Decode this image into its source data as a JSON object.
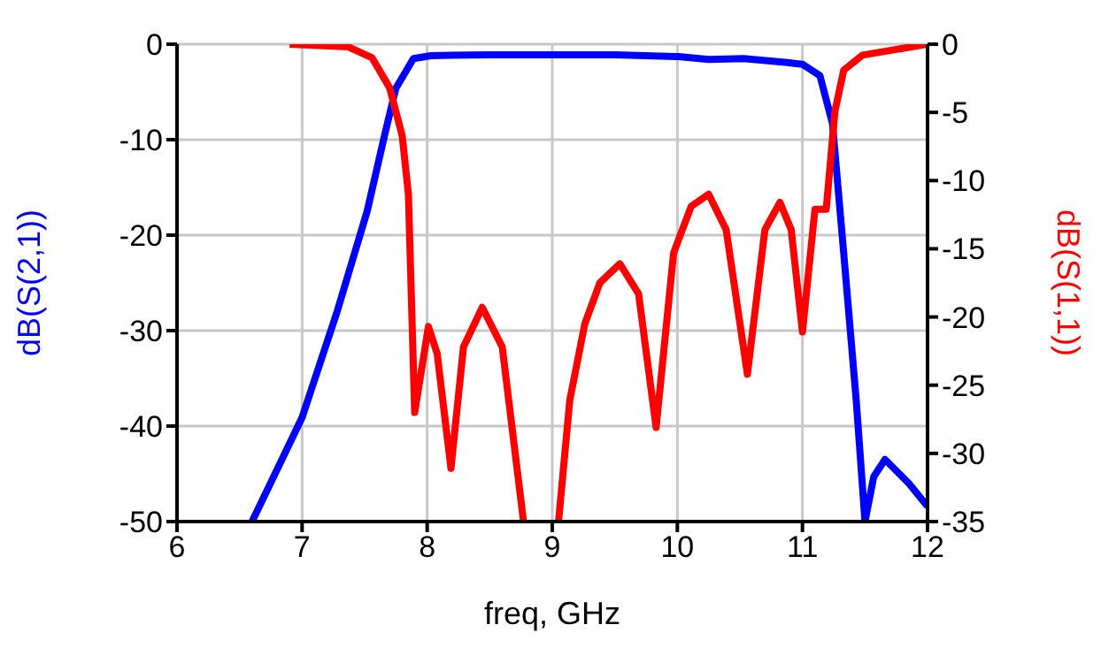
{
  "chart_data": {
    "type": "line",
    "xlabel": "freq, GHz",
    "ylabel": "dB(S(2,1))",
    "y2label": "dB(S(1,1))",
    "xlim": [
      6,
      12
    ],
    "xticks": [
      6,
      7,
      8,
      9,
      10,
      11,
      12
    ],
    "ylim": [
      -50,
      0
    ],
    "yticks": [
      -50,
      -40,
      -30,
      -20,
      -10,
      0
    ],
    "y2lim": [
      -35,
      0
    ],
    "y2ticks": [
      -35,
      -30,
      -25,
      -20,
      -15,
      -10,
      -5,
      0
    ],
    "grid": true,
    "legend": false,
    "marker": "none",
    "line_style": "solid",
    "series": [
      {
        "color": "#0000ff",
        "x": [
          6.6,
          7.0,
          7.28,
          7.52,
          7.66,
          7.75,
          7.89,
          8.03,
          8.5,
          8.98,
          9.5,
          10.01,
          10.25,
          10.53,
          10.86,
          11.0,
          11.14,
          11.24,
          11.33,
          11.43,
          11.5,
          11.57,
          11.66,
          11.85,
          12.0
        ],
        "values": [
          -50,
          -39.1,
          -28,
          -17.5,
          -9.5,
          -4.6,
          -1.5,
          -1.2,
          -1.1,
          -1.1,
          -1.1,
          -1.3,
          -1.6,
          -1.5,
          -1.9,
          -2.1,
          -3.3,
          -8.3,
          -21.9,
          -37.3,
          -50,
          -45.3,
          -43.5,
          -46,
          -48.4
        ]
      },
      {
        "color": "#ff0000",
        "axis": "y2",
        "x": [
          6.9,
          7.37,
          7.56,
          7.7,
          7.8,
          7.85,
          7.9,
          8.01,
          8.08,
          8.19,
          8.29,
          8.44,
          8.6,
          8.77,
          8.9,
          9.05,
          9.14,
          9.26,
          9.38,
          9.54,
          9.69,
          9.83,
          9.97,
          10.11,
          10.25,
          10.39,
          10.56,
          10.7,
          10.82,
          10.91,
          11.0,
          11.1,
          11.19,
          11.26,
          11.33,
          11.48,
          12.0
        ],
        "values": [
          0,
          -0.2,
          -1.0,
          -3.2,
          -6.7,
          -11,
          -27,
          -20.7,
          -22.7,
          -31.1,
          -22.2,
          -19.3,
          -22.2,
          -35,
          null,
          -35,
          -26.1,
          -20.5,
          -17.5,
          -16.1,
          -18.3,
          -28.1,
          -15.3,
          -11.9,
          -11.0,
          -13.6,
          -24.2,
          -13.6,
          -11.6,
          -13.6,
          -21.1,
          -12.1,
          -12.1,
          -4.9,
          -1.9,
          -0.8,
          0
        ]
      }
    ]
  }
}
